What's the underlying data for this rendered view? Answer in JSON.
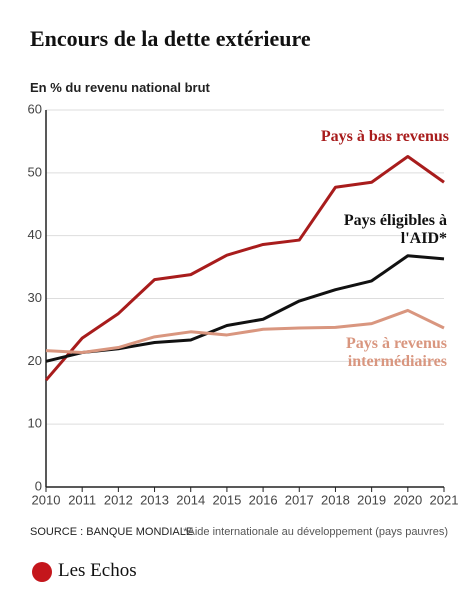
{
  "chart_data": {
    "type": "line",
    "title": "Encours de la dette extérieure",
    "subtitle": "En % du revenu national brut",
    "x": [
      2010,
      2011,
      2012,
      2013,
      2014,
      2015,
      2016,
      2017,
      2018,
      2019,
      2020,
      2021
    ],
    "xlim": [
      2010,
      2021
    ],
    "xticks": [
      2010,
      2011,
      2012,
      2013,
      2014,
      2015,
      2016,
      2017,
      2018,
      2019,
      2020,
      2021
    ],
    "ylim": [
      0,
      60
    ],
    "yticks": [
      0,
      10,
      20,
      30,
      40,
      50,
      60
    ],
    "grid": true,
    "series": [
      {
        "name": "Pays à bas revenus",
        "color": "#a81c1c",
        "values": [
          17,
          23.7,
          27.6,
          33,
          33.8,
          36.9,
          38.6,
          39.3,
          47.7,
          48.5,
          52.6,
          48.5
        ]
      },
      {
        "name": "Pays éligibles à l'AID*",
        "color": "#111111",
        "values": [
          20,
          21.4,
          22,
          23,
          23.4,
          25.7,
          26.7,
          29.6,
          31.4,
          32.8,
          36.8,
          36.3
        ]
      },
      {
        "name": "Pays à revenus intermédiaires",
        "color": "#d9967f",
        "values": [
          21.7,
          21.4,
          22.2,
          23.9,
          24.7,
          24.2,
          25.1,
          25.3,
          25.4,
          26,
          28.1,
          25.3
        ]
      }
    ],
    "source": "SOURCE : BANQUE MONDIALE",
    "note": "*Aide internationale au développement (pays pauvres)",
    "logo": "Les Echos"
  }
}
